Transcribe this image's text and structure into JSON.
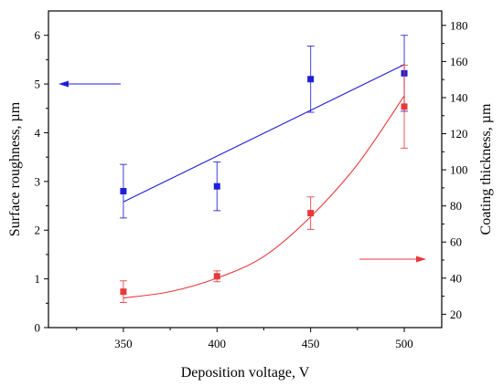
{
  "chart_data": {
    "type": "scatter",
    "title": "",
    "xlabel": "Deposition voltage, V",
    "ylabel_left": "Surface roughness, µm",
    "ylabel_right": "Coating thickness, µm",
    "xlim": [
      310,
      520
    ],
    "ylim_left": [
      0,
      6.5
    ],
    "ylim_right": [
      12.6,
      188
    ],
    "x_ticks": [
      "350",
      "400",
      "450",
      "500"
    ],
    "y_left_ticks": [
      "0",
      "1",
      "2",
      "3",
      "4",
      "5",
      "6"
    ],
    "y_right_ticks": [
      "20",
      "40",
      "60",
      "80",
      "100",
      "120",
      "140",
      "160",
      "180"
    ],
    "grid": false,
    "series": [
      {
        "axis": "left",
        "color": "#1f1fd6",
        "marker": "square",
        "x": [
          350,
          400,
          450,
          500
        ],
        "y": [
          2.8,
          2.9,
          5.1,
          5.22
        ],
        "err": [
          0.55,
          0.5,
          0.68,
          0.78
        ],
        "fit": "linear",
        "fit_x": [
          350,
          500
        ],
        "fit_y": [
          2.58,
          5.4
        ]
      },
      {
        "axis": "right",
        "color": "#e8393a",
        "marker": "square",
        "x": [
          350,
          400,
          450,
          500
        ],
        "y": [
          32.5,
          41,
          76,
          135
        ],
        "err": [
          6,
          3,
          9,
          23
        ],
        "fit": "exponential",
        "fit_x": [
          350,
          375,
          400,
          425,
          450,
          475,
          500
        ],
        "fit_y": [
          29,
          32.5,
          40,
          52,
          74,
          103,
          141
        ]
      }
    ],
    "annotations": [
      {
        "type": "arrow",
        "direction": "left",
        "color": "#1f1fd6",
        "meaning": "blue series → left axis"
      },
      {
        "type": "arrow",
        "direction": "right",
        "color": "#e8393a",
        "meaning": "red series → right axis"
      }
    ]
  }
}
